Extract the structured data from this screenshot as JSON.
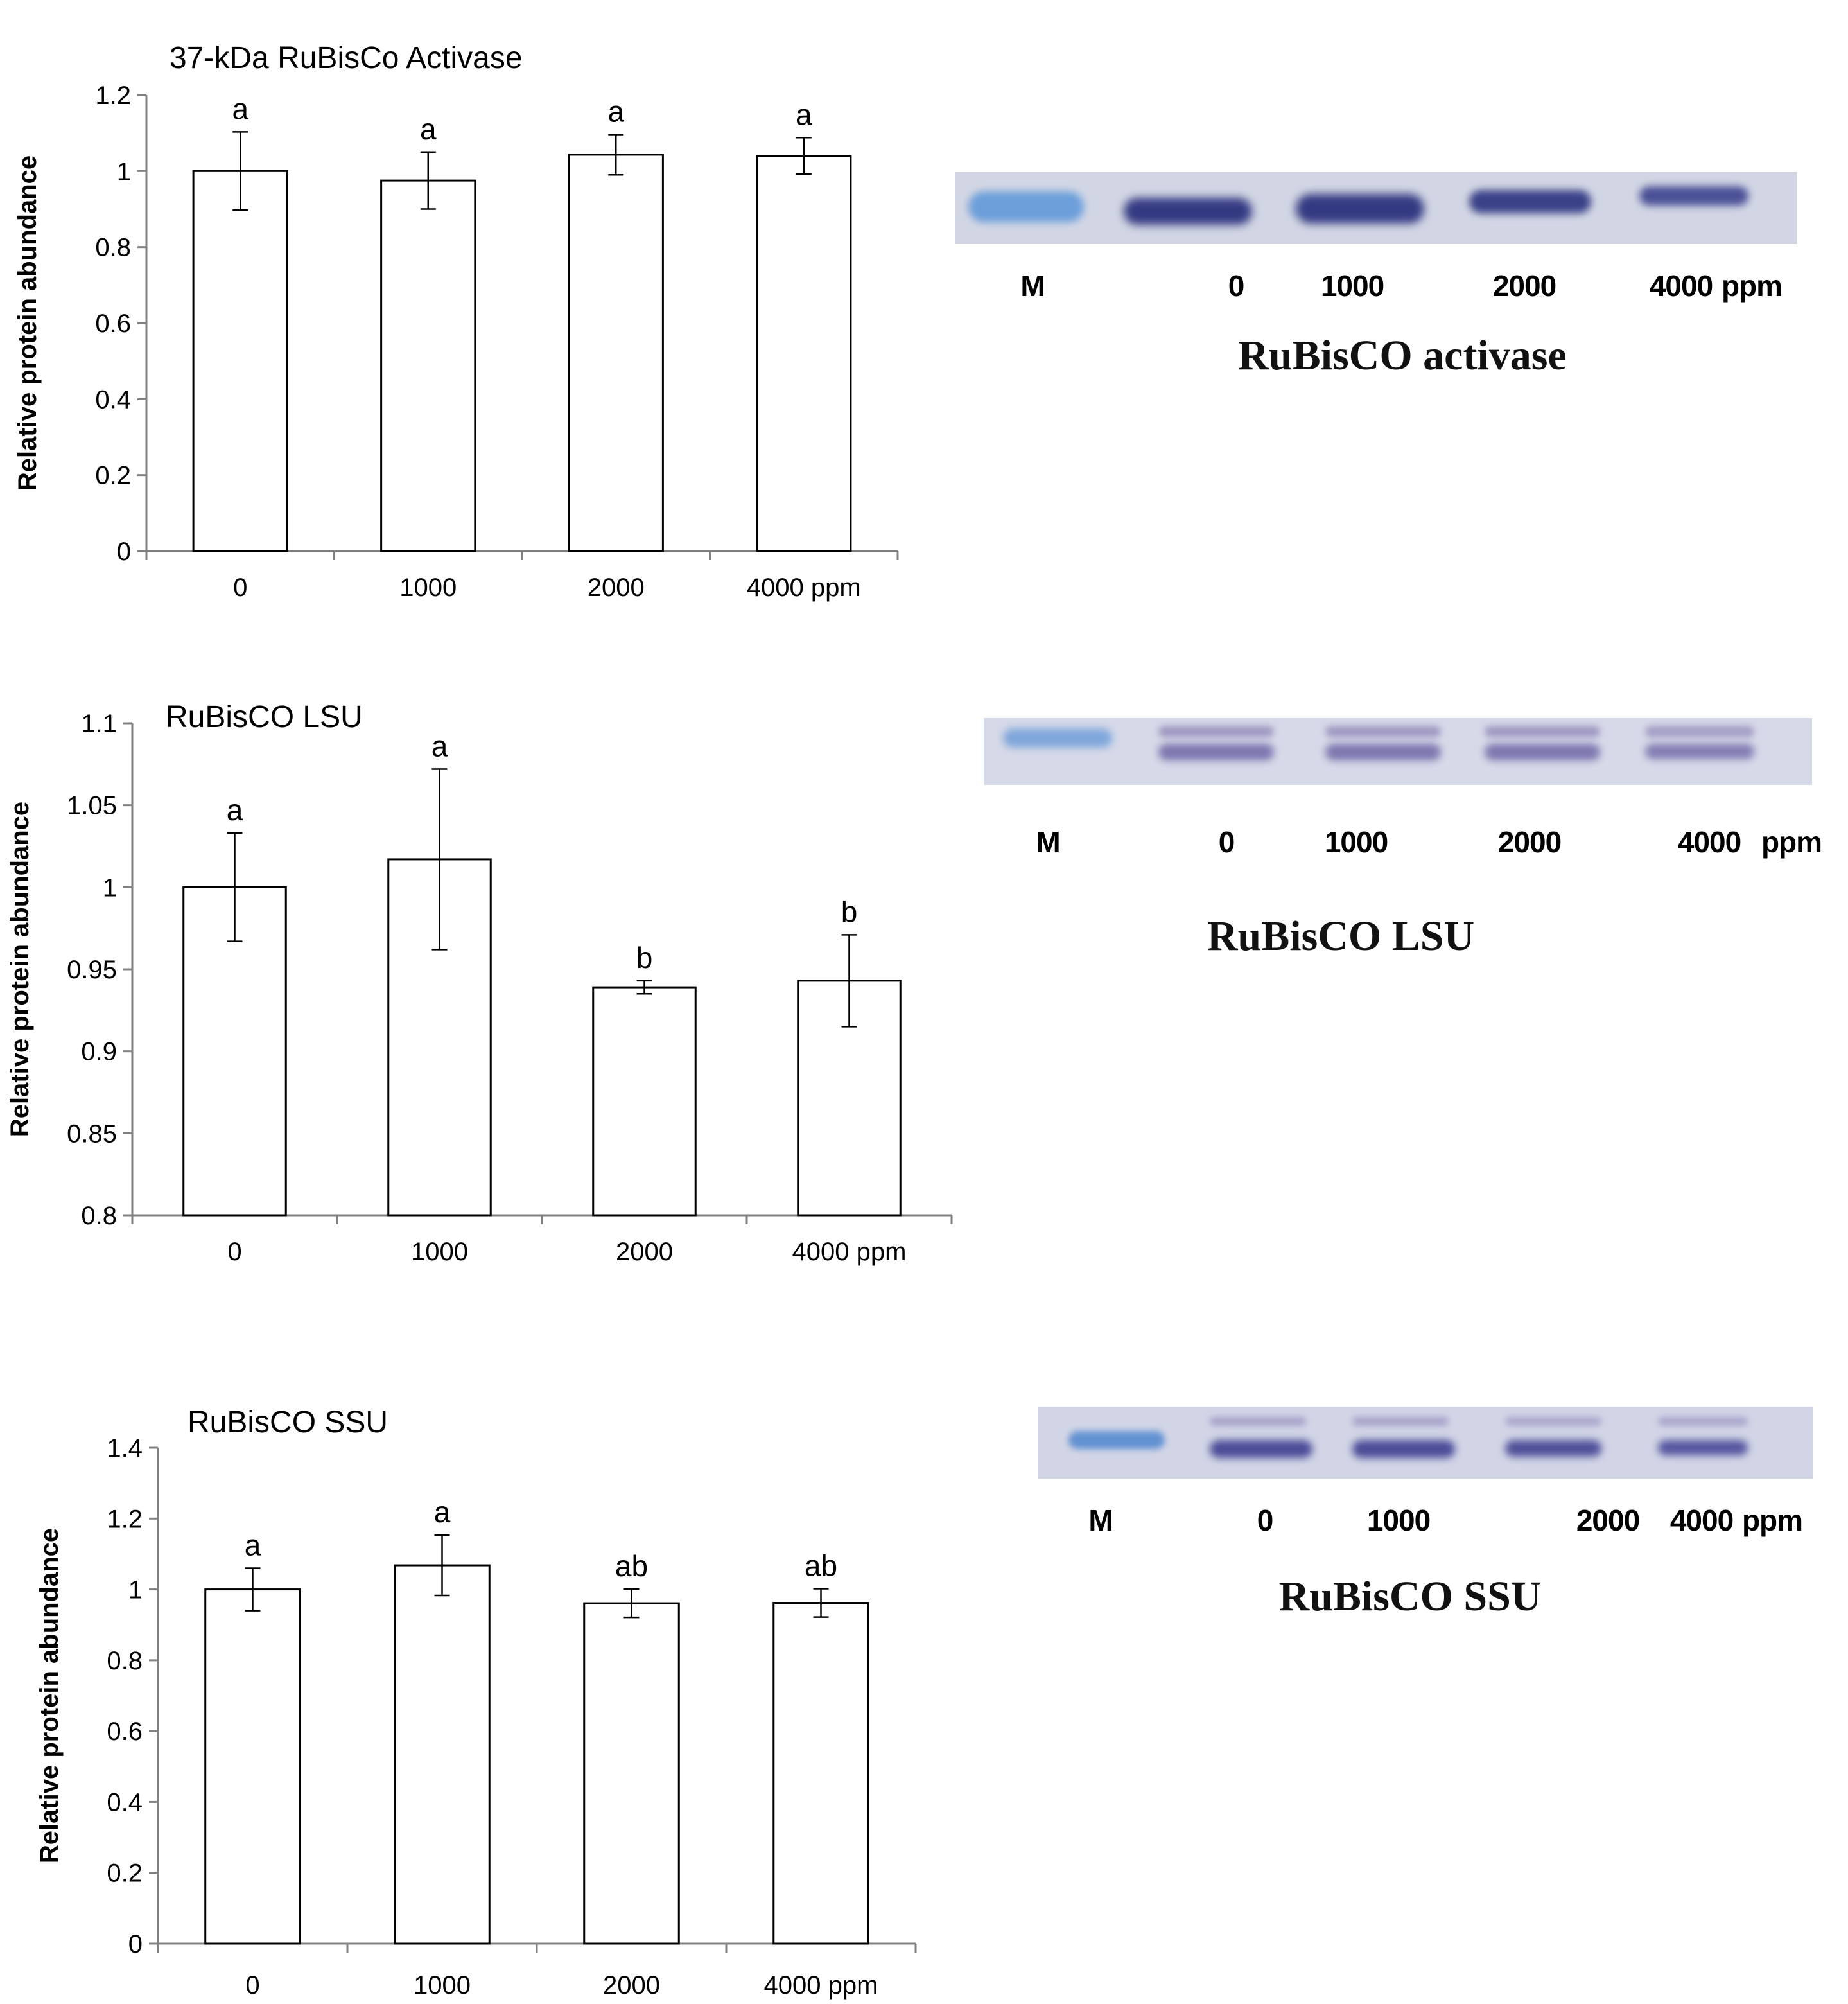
{
  "colors": {
    "bar_fill": "#ffffff",
    "bar_stroke": "#000000",
    "gel_bg": "#d2d6e4",
    "marker_band": "#5b8ed0",
    "sample_band": "#3a3f86"
  },
  "chart_data": [
    {
      "type": "bar",
      "title": "37-kDa RuBisCo Activase",
      "ylabel": "Relative protein abundance",
      "xlabel": "",
      "categories": [
        "0",
        "1000",
        "2000",
        "4000 ppm"
      ],
      "values": [
        1.0,
        0.975,
        1.043,
        1.04
      ],
      "errors": [
        0.103,
        0.075,
        0.053,
        0.048
      ],
      "significance": [
        "a",
        "a",
        "a",
        "a"
      ],
      "ylim": [
        0,
        1.2
      ],
      "yticks": [
        "0",
        "0.2",
        "0.4",
        "0.6",
        "0.8",
        "1",
        "1.2"
      ],
      "grid": false
    },
    {
      "type": "bar",
      "title": "RuBisCO LSU",
      "ylabel": "Relative protein abundance",
      "xlabel": "",
      "categories": [
        "0",
        "1000",
        "2000",
        "4000 ppm"
      ],
      "values": [
        1.0,
        1.017,
        0.939,
        0.943
      ],
      "errors": [
        0.033,
        0.055,
        0.004,
        0.028
      ],
      "significance": [
        "a",
        "a",
        "b",
        "b"
      ],
      "ylim": [
        0.8,
        1.1
      ],
      "yticks": [
        "0.8",
        "0.85",
        "0.9",
        "0.95",
        "1",
        "1.05",
        "1.1"
      ],
      "grid": false
    },
    {
      "type": "bar",
      "title": "RuBisCO SSU",
      "ylabel": "Relative protein abundance",
      "xlabel": "",
      "categories": [
        "0",
        "1000",
        "2000",
        "4000 ppm"
      ],
      "values": [
        1.0,
        1.068,
        0.961,
        0.962
      ],
      "errors": [
        0.06,
        0.085,
        0.04,
        0.04
      ],
      "significance": [
        "a",
        "a",
        "ab",
        "ab"
      ],
      "ylim": [
        0,
        1.4
      ],
      "yticks": [
        "0",
        "0.2",
        "0.4",
        "0.6",
        "0.8",
        "1",
        "1.2",
        "1.4"
      ],
      "grid": false
    }
  ],
  "gels": [
    {
      "caption": "RuBisCO activase",
      "lanes": [
        "M",
        "0",
        "1000",
        "2000",
        "4000",
        "ppm"
      ]
    },
    {
      "caption": "RuBisCO LSU",
      "lanes": [
        "M",
        "0",
        "1000",
        "2000",
        "4000",
        "ppm"
      ]
    },
    {
      "caption": "RuBisCO SSU",
      "lanes": [
        "M",
        "0",
        "1000",
        "2000",
        "4000",
        "ppm"
      ]
    }
  ]
}
